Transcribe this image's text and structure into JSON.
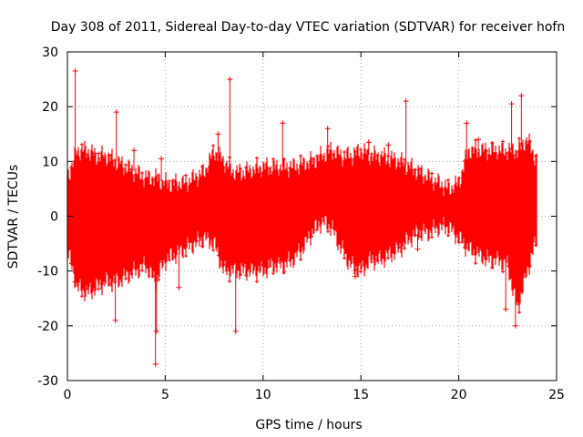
{
  "chart_data": {
    "type": "scatter",
    "title": "Day 308 of 2011, Sidereal Day-to-day VTEC variation (SDTVAR) for receiver hofn",
    "xlabel": "GPS time / hours",
    "ylabel": "SDTVAR / TECUs",
    "xlim": [
      0,
      25
    ],
    "ylim": [
      -30,
      30
    ],
    "xticks": [
      0,
      5,
      10,
      15,
      20,
      25
    ],
    "yticks": [
      -30,
      -20,
      -10,
      0,
      10,
      20,
      30
    ],
    "grid": true,
    "marker": "+",
    "series_color": "#ff0000",
    "envelope": {
      "x": [
        0,
        0.5,
        1,
        1.5,
        2,
        2.5,
        3,
        3.5,
        4,
        4.5,
        5,
        5.5,
        6,
        6.5,
        7,
        7.5,
        8,
        8.5,
        9,
        9.5,
        10,
        10.5,
        11,
        11.5,
        12,
        12.5,
        13,
        13.5,
        14,
        14.5,
        15,
        15.5,
        16,
        16.5,
        17,
        17.5,
        18,
        18.5,
        19,
        19.5,
        20,
        20.5,
        21,
        21.5,
        22,
        22.5,
        23,
        23.5,
        24
      ],
      "upper": [
        7,
        12,
        12,
        11,
        11,
        10,
        9,
        8,
        7,
        7,
        6,
        6,
        6,
        7,
        8,
        12,
        10,
        8,
        8,
        8.5,
        9,
        9,
        9,
        9,
        9.5,
        10,
        11,
        12,
        11,
        11,
        12,
        11,
        11,
        10.5,
        10,
        9,
        8,
        7,
        6,
        5,
        6,
        12,
        12,
        12,
        12,
        12,
        12,
        14,
        10
      ],
      "lower": [
        -6,
        -13,
        -14,
        -13,
        -12,
        -12,
        -11,
        -10,
        -9,
        -12,
        -8,
        -7,
        -6,
        -5,
        -4,
        -5,
        -10,
        -10,
        -10,
        -10,
        -10,
        -9,
        -9,
        -8,
        -6,
        -3,
        -1,
        -2,
        -6,
        -9,
        -10,
        -8,
        -8,
        -7,
        -6,
        -4,
        -3,
        -3,
        -2,
        -2,
        -4,
        -6,
        -7,
        -8,
        -8,
        -9,
        -17,
        -10,
        -4
      ]
    },
    "spikes": [
      {
        "x": 0.4,
        "y": 26.5
      },
      {
        "x": 0.4,
        "y": -12
      },
      {
        "x": 2.5,
        "y": 19
      },
      {
        "x": 2.45,
        "y": -19
      },
      {
        "x": 3.4,
        "y": 12
      },
      {
        "x": 4.5,
        "y": -27
      },
      {
        "x": 4.55,
        "y": -21
      },
      {
        "x": 4.8,
        "y": 10.5
      },
      {
        "x": 5.7,
        "y": -13
      },
      {
        "x": 7.7,
        "y": 15
      },
      {
        "x": 8.3,
        "y": 25
      },
      {
        "x": 8.6,
        "y": -21
      },
      {
        "x": 11.0,
        "y": 17
      },
      {
        "x": 13.3,
        "y": 16
      },
      {
        "x": 14.7,
        "y": -11
      },
      {
        "x": 15.4,
        "y": 13.5
      },
      {
        "x": 16.4,
        "y": 13
      },
      {
        "x": 17.3,
        "y": 21
      },
      {
        "x": 17.9,
        "y": -6
      },
      {
        "x": 20.4,
        "y": 17
      },
      {
        "x": 21.0,
        "y": 14
      },
      {
        "x": 22.4,
        "y": -17
      },
      {
        "x": 22.7,
        "y": 20.5
      },
      {
        "x": 22.9,
        "y": -20
      },
      {
        "x": 23.2,
        "y": 22
      }
    ]
  }
}
